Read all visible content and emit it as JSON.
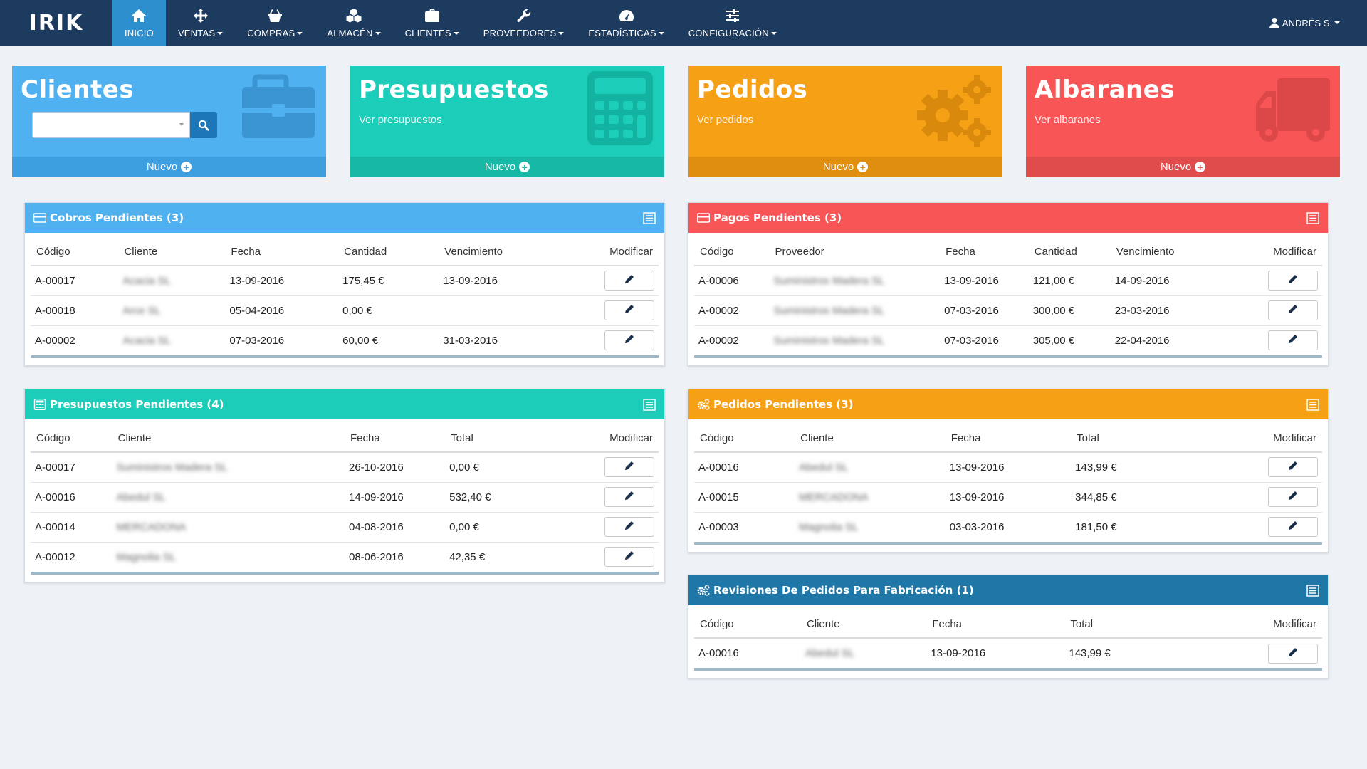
{
  "nav": {
    "logo": "IRIK",
    "items": [
      {
        "label": "INICIO",
        "icon": "home-icon",
        "active": true,
        "caret": false
      },
      {
        "label": "VENTAS",
        "icon": "move-icon",
        "caret": true
      },
      {
        "label": "COMPRAS",
        "icon": "basket-icon",
        "caret": true
      },
      {
        "label": "ALMACÉN",
        "icon": "boxes-icon",
        "caret": true
      },
      {
        "label": "CLIENTES",
        "icon": "briefcase-icon",
        "caret": true
      },
      {
        "label": "PROVEEDORES",
        "icon": "wrench-icon",
        "caret": true
      },
      {
        "label": "ESTADÍSTICAS",
        "icon": "dashboard-icon",
        "caret": true
      },
      {
        "label": "CONFIGURACIÓN",
        "icon": "sliders-icon",
        "caret": true
      }
    ],
    "user": "ANDRÉS S."
  },
  "tiles": {
    "clientes": {
      "title": "Clientes",
      "footer": "Nuevo",
      "color": "#4fb1ef",
      "footer_color": "#3d9fdf"
    },
    "presupuestos": {
      "title": "Presupuestos",
      "subtitle": "Ver presupuestos",
      "footer": "Nuevo",
      "color": "#1ccdba",
      "footer_color": "#17b8a6"
    },
    "pedidos": {
      "title": "Pedidos",
      "subtitle": "Ver pedidos",
      "footer": "Nuevo",
      "color": "#f6a015",
      "footer_color": "#df8f0d"
    },
    "albaranes": {
      "title": "Albaranes",
      "subtitle": "Ver albaranes",
      "footer": "Nuevo",
      "color": "#f85556",
      "footer_color": "#e04b4c"
    }
  },
  "cobros": {
    "title": "Cobros Pendientes (3)",
    "color": "#4fb1ef",
    "columns": [
      "Código",
      "Cliente",
      "Fecha",
      "Cantidad",
      "Vencimiento",
      "Modificar"
    ],
    "rows": [
      [
        "A-00017",
        "Acacia SL",
        "13-09-2016",
        "175,45 €",
        "13-09-2016"
      ],
      [
        "A-00018",
        "Arce SL",
        "05-04-2016",
        "0,00 €",
        ""
      ],
      [
        "A-00002",
        "Acacia SL",
        "07-03-2016",
        "60,00 €",
        "31-03-2016"
      ]
    ]
  },
  "pagos": {
    "title": "Pagos Pendientes (3)",
    "color": "#f85556",
    "columns": [
      "Código",
      "Proveedor",
      "Fecha",
      "Cantidad",
      "Vencimiento",
      "Modificar"
    ],
    "rows": [
      [
        "A-00006",
        "Suministros Madera SL",
        "13-09-2016",
        "121,00 €",
        "14-09-2016"
      ],
      [
        "A-00002",
        "Suministros Madera SL",
        "07-03-2016",
        "300,00 €",
        "23-03-2016"
      ],
      [
        "A-00002",
        "Suministros Madera SL",
        "07-03-2016",
        "305,00 €",
        "22-04-2016"
      ]
    ]
  },
  "presupuestos": {
    "title": "Presupuestos Pendientes (4)",
    "color": "#1ccdba",
    "columns": [
      "Código",
      "Cliente",
      "Fecha",
      "Total",
      "Modificar"
    ],
    "rows": [
      [
        "A-00017",
        "Suministros Madera SL",
        "26-10-2016",
        "0,00 €"
      ],
      [
        "A-00016",
        "Abedul SL",
        "14-09-2016",
        "532,40 €"
      ],
      [
        "A-00014",
        "MERCADONA",
        "04-08-2016",
        "0,00 €"
      ],
      [
        "A-00012",
        "Magnolia SL",
        "08-06-2016",
        "42,35 €"
      ]
    ]
  },
  "pedidos": {
    "title": "Pedidos Pendientes (3)",
    "color": "#f6a015",
    "columns": [
      "Código",
      "Cliente",
      "Fecha",
      "Total",
      "Modificar"
    ],
    "rows": [
      [
        "A-00016",
        "Abedul SL",
        "13-09-2016",
        "143,99 €"
      ],
      [
        "A-00015",
        "MERCADONA",
        "13-09-2016",
        "344,85 €"
      ],
      [
        "A-00003",
        "Magnolia SL",
        "03-03-2016",
        "181,50 €"
      ]
    ]
  },
  "revisiones": {
    "title": "Revisiones De Pedidos Para Fabricación (1)",
    "color": "#1f77a8",
    "columns": [
      "Código",
      "Cliente",
      "Fecha",
      "Total",
      "Modificar"
    ],
    "rows": [
      [
        "A-00016",
        "Abedul SL",
        "13-09-2016",
        "143,99 €"
      ]
    ]
  }
}
